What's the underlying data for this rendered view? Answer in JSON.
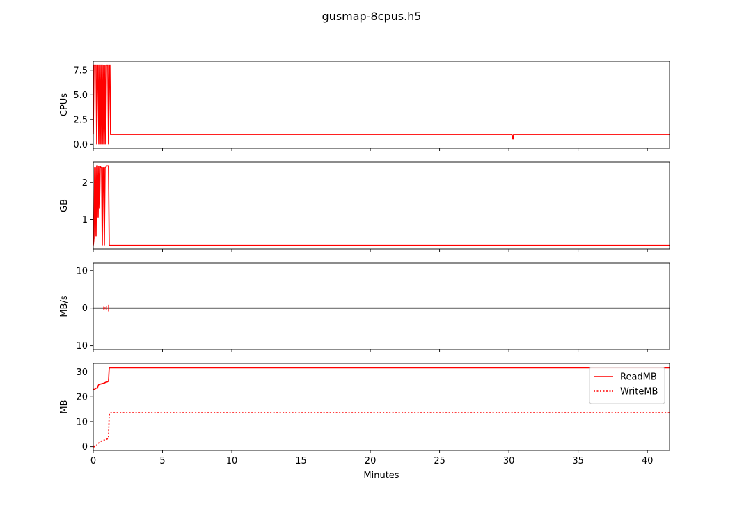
{
  "figure": {
    "title": "gusmap-8cpus.h5",
    "xlabel": "Minutes",
    "xlim": [
      0,
      41.6
    ],
    "xticks": [
      0,
      5,
      10,
      15,
      20,
      25,
      30,
      35,
      40
    ],
    "series_color": "#ff0000",
    "zero_line_color": "#000000"
  },
  "chart_data": [
    {
      "type": "line",
      "ylabel": "CPUs",
      "ylim": [
        -0.4,
        8.4
      ],
      "yticks": [
        0.0,
        2.5,
        5.0,
        7.5
      ],
      "ytick_labels": [
        "0.0",
        "2.5",
        "5.0",
        "7.5"
      ],
      "grid": false,
      "series": [
        {
          "color": "#ff0000",
          "style": "solid",
          "x": [
            0,
            0.05,
            0.1,
            0.15,
            0.2,
            0.25,
            0.3,
            0.35,
            0.4,
            0.45,
            0.5,
            0.55,
            0.6,
            0.65,
            0.7,
            0.75,
            0.8,
            0.85,
            0.9,
            0.95,
            1.0,
            1.05,
            1.1,
            1.15,
            1.2,
            1.25,
            5,
            30.2,
            30.25,
            30.3,
            30.35,
            30.4,
            35,
            41.6
          ],
          "y": [
            1,
            8,
            8,
            8,
            8,
            0,
            8,
            8,
            0,
            8,
            8,
            0,
            8,
            8,
            0,
            8,
            0,
            8,
            0,
            8,
            8,
            8,
            0,
            8,
            8,
            1,
            1,
            1,
            0.9,
            0.5,
            1,
            1,
            1,
            1
          ]
        }
      ]
    },
    {
      "type": "line",
      "ylabel": "GB",
      "ylim": [
        0.2,
        2.55
      ],
      "yticks": [
        1,
        2
      ],
      "ytick_labels": [
        "1",
        "2"
      ],
      "grid": false,
      "series": [
        {
          "color": "#ff0000",
          "style": "solid",
          "x": [
            0,
            0.05,
            0.1,
            0.15,
            0.2,
            0.25,
            0.3,
            0.35,
            0.4,
            0.45,
            0.5,
            0.55,
            0.6,
            0.65,
            0.7,
            0.75,
            0.8,
            0.85,
            0.9,
            0.95,
            1.0,
            1.05,
            1.1,
            1.15,
            1.2,
            1.25,
            5,
            41.6
          ],
          "y": [
            0.3,
            0.5,
            2.4,
            2.4,
            0.55,
            2.45,
            2.45,
            1.05,
            2.45,
            1.3,
            2.45,
            2.4,
            2.4,
            0.3,
            2.4,
            2.4,
            0.3,
            2.4,
            2.4,
            2.45,
            2.45,
            2.45,
            2.45,
            0.3,
            0.3,
            0.3,
            0.3,
            0.3
          ]
        }
      ]
    },
    {
      "type": "line",
      "ylabel": "MB/s",
      "ylim": [
        -11,
        12
      ],
      "yticks": [
        -10,
        0,
        10
      ],
      "ytick_labels": [
        "10",
        "0",
        "10"
      ],
      "grid": false,
      "series": [
        {
          "color": "#000000",
          "style": "solid",
          "x": [
            0,
            41.6
          ],
          "y": [
            0,
            0
          ]
        },
        {
          "color": "#ff0000",
          "style": "spikes",
          "x": [
            0.75,
            0.85,
            0.95,
            1.1
          ],
          "y": [
            0.4,
            0.3,
            0.5,
            0.9
          ]
        }
      ]
    },
    {
      "type": "line",
      "ylabel": "MB",
      "ylim": [
        -1.5,
        33.5
      ],
      "yticks": [
        0,
        10,
        20,
        30
      ],
      "ytick_labels": [
        "0",
        "10",
        "20",
        "30"
      ],
      "grid": false,
      "legend": "upper-right",
      "series": [
        {
          "name": "ReadMB",
          "color": "#ff0000",
          "style": "solid",
          "x": [
            0,
            0.1,
            0.2,
            0.3,
            0.35,
            0.4,
            0.6,
            0.8,
            0.9,
            1.0,
            1.05,
            1.1,
            1.15,
            1.2,
            5,
            41.6
          ],
          "y": [
            23,
            23,
            23.5,
            23.5,
            24.5,
            25,
            25.3,
            25.6,
            25.9,
            26,
            26.2,
            26.3,
            31.5,
            31.7,
            31.7,
            31.7
          ]
        },
        {
          "name": "WriteMB",
          "color": "#ff0000",
          "style": "dotted",
          "x": [
            0,
            0.1,
            0.2,
            0.3,
            0.4,
            0.5,
            0.7,
            0.9,
            1.0,
            1.05,
            1.1,
            1.15,
            1.2,
            5,
            41.6
          ],
          "y": [
            0,
            0,
            0.3,
            1,
            1.5,
            2,
            2.5,
            2.8,
            3,
            3.2,
            3.6,
            12.8,
            13.6,
            13.6,
            13.6
          ]
        }
      ]
    }
  ]
}
